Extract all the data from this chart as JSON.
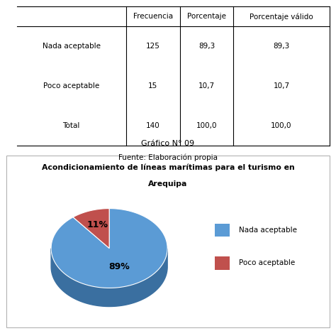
{
  "table": {
    "rows": [
      [
        "Nada aceptable",
        "125",
        "89,3",
        "89,3"
      ],
      [
        "Poco aceptable",
        "15",
        "10,7",
        "10,7"
      ],
      [
        "Total",
        "140",
        "100,0",
        "100,0"
      ]
    ],
    "col_headers": [
      "Frecuencia",
      "Porcentaje",
      "Porcentaje válido"
    ],
    "source": "Fuente: Elaboración propia"
  },
  "chart": {
    "graph_label": "Gráfico N° 09",
    "title_line1": "Acondicionamiento de líneas marítimas para el turismo en",
    "title_line2": "Arequipa",
    "values": [
      89.3,
      10.7
    ],
    "pct_labels": [
      "89%",
      "11%"
    ],
    "legend_labels": [
      "Nada aceptable",
      "Poco aceptable"
    ],
    "colors": [
      "#5b9bd5",
      "#c0504d"
    ],
    "shadow_colors": [
      "#3a6fa0",
      "#8b3530"
    ],
    "background_color": "#ffffff"
  }
}
